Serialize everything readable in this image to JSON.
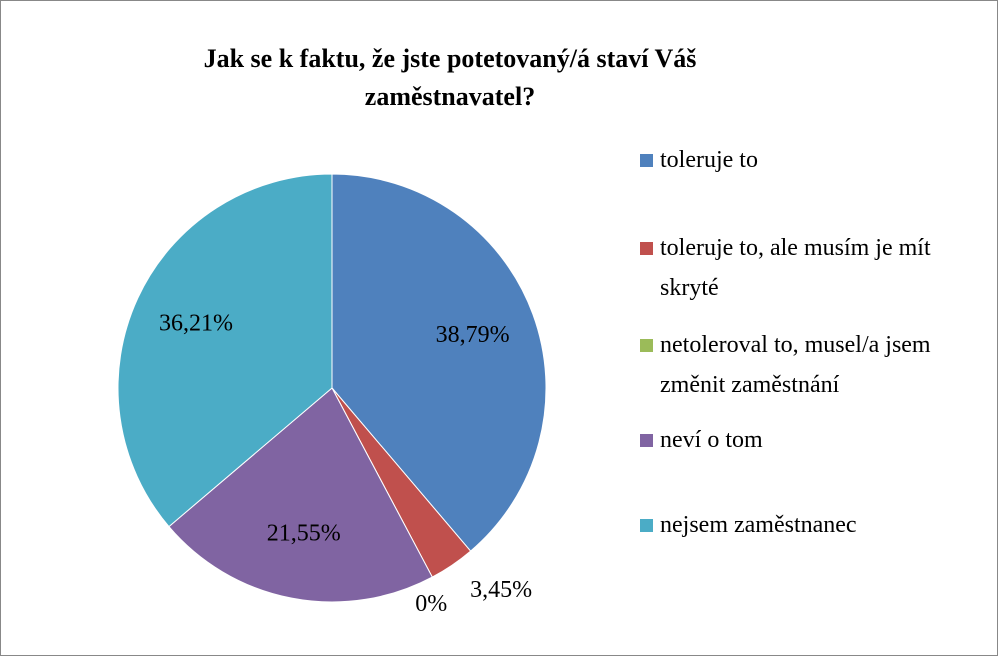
{
  "chart_data": {
    "type": "pie",
    "title": "Jak se k faktu, že jste potetovaný/á staví Váš zaměstnavatel?",
    "categories": [
      "toleruje to",
      "toleruje to, ale musím je mít skryté",
      "netoleroval to, musel/a jsem změnit zaměstnání",
      "neví o tom",
      "nejsem zaměstnanec"
    ],
    "values": [
      38.79,
      3.45,
      0,
      21.55,
      36.21
    ],
    "value_labels": [
      "38,79%",
      "3,45%",
      "0%",
      "21,55%",
      "36,21%"
    ],
    "colors": [
      "#4F81BD",
      "#C0504D",
      "#9BBB59",
      "#8064A2",
      "#4BACC6"
    ],
    "legend": "right"
  }
}
